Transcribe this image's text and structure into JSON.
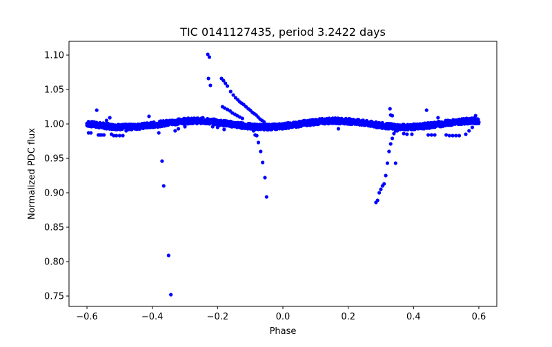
{
  "chart_data": {
    "type": "scatter",
    "title": "TIC 0141127435, period 3.2422 days",
    "xlabel": "Phase",
    "ylabel": "Normalized PDC flux",
    "xlim": [
      -0.655,
      0.655
    ],
    "ylim": [
      0.735,
      1.12
    ],
    "xticks": [
      -0.6,
      -0.4,
      -0.2,
      0.0,
      0.2,
      0.4,
      0.6
    ],
    "xtick_labels": [
      "−0.6",
      "−0.4",
      "−0.2",
      "0.0",
      "0.2",
      "0.4",
      "0.6"
    ],
    "yticks": [
      0.75,
      0.8,
      0.85,
      0.9,
      0.95,
      1.0,
      1.05,
      1.1
    ],
    "ytick_labels": [
      "0.75",
      "0.80",
      "0.85",
      "0.90",
      "0.95",
      "1.00",
      "1.05",
      "1.10"
    ],
    "grid": false,
    "legend": "none",
    "series": [
      {
        "color": "#0000ff",
        "marker": "circle",
        "baseline": {
          "x_range": [
            -0.6,
            0.6
          ],
          "model": "1 + 0.0045*sin(2*pi*(phase - 0.0)/0.43) approx; minima near -0.5 and 0.0, maxima near -0.22 and 0.22",
          "scatter": 0.004
        },
        "points": [
          {
            "x": -0.6,
            "y": 0.998
          },
          {
            "x": -0.595,
            "y": 0.987
          },
          {
            "x": -0.588,
            "y": 0.987
          },
          {
            "x": -0.57,
            "y": 1.02
          },
          {
            "x": -0.565,
            "y": 0.984
          },
          {
            "x": -0.56,
            "y": 0.984
          },
          {
            "x": -0.555,
            "y": 0.984
          },
          {
            "x": -0.548,
            "y": 0.984
          },
          {
            "x": -0.54,
            "y": 1.005
          },
          {
            "x": -0.53,
            "y": 1.009
          },
          {
            "x": -0.525,
            "y": 0.985
          },
          {
            "x": -0.518,
            "y": 0.983
          },
          {
            "x": -0.51,
            "y": 0.983
          },
          {
            "x": -0.5,
            "y": 0.983
          },
          {
            "x": -0.49,
            "y": 0.983
          },
          {
            "x": -0.48,
            "y": 0.99
          },
          {
            "x": -0.41,
            "y": 1.011
          },
          {
            "x": -0.38,
            "y": 0.987
          },
          {
            "x": -0.37,
            "y": 0.946
          },
          {
            "x": -0.365,
            "y": 0.91
          },
          {
            "x": -0.35,
            "y": 0.809
          },
          {
            "x": -0.343,
            "y": 0.752
          },
          {
            "x": -0.33,
            "y": 0.99
          },
          {
            "x": -0.32,
            "y": 0.993
          },
          {
            "x": -0.3,
            "y": 0.996
          },
          {
            "x": -0.26,
            "y": 1.002
          },
          {
            "x": -0.245,
            "y": 1.009
          },
          {
            "x": -0.23,
            "y": 1.101
          },
          {
            "x": -0.225,
            "y": 1.097
          },
          {
            "x": -0.228,
            "y": 1.066
          },
          {
            "x": -0.222,
            "y": 1.056
          },
          {
            "x": -0.215,
            "y": 0.996
          },
          {
            "x": -0.2,
            "y": 0.995
          },
          {
            "x": -0.188,
            "y": 1.066
          },
          {
            "x": -0.182,
            "y": 1.063
          },
          {
            "x": -0.176,
            "y": 1.059
          },
          {
            "x": -0.17,
            "y": 1.055
          },
          {
            "x": -0.16,
            "y": 1.047
          },
          {
            "x": -0.152,
            "y": 1.042
          },
          {
            "x": -0.145,
            "y": 1.038
          },
          {
            "x": -0.138,
            "y": 1.035
          },
          {
            "x": -0.132,
            "y": 1.032
          },
          {
            "x": -0.126,
            "y": 1.03
          },
          {
            "x": -0.12,
            "y": 1.028
          },
          {
            "x": -0.113,
            "y": 1.025
          },
          {
            "x": -0.106,
            "y": 1.022
          },
          {
            "x": -0.1,
            "y": 1.02
          },
          {
            "x": -0.094,
            "y": 1.017
          },
          {
            "x": -0.088,
            "y": 1.015
          },
          {
            "x": -0.082,
            "y": 1.013
          },
          {
            "x": -0.076,
            "y": 1.01
          },
          {
            "x": -0.07,
            "y": 1.007
          },
          {
            "x": -0.064,
            "y": 1.005
          },
          {
            "x": -0.058,
            "y": 1.003
          },
          {
            "x": -0.185,
            "y": 1.025
          },
          {
            "x": -0.178,
            "y": 1.023
          },
          {
            "x": -0.17,
            "y": 1.021
          },
          {
            "x": -0.162,
            "y": 1.019
          },
          {
            "x": -0.155,
            "y": 1.016
          },
          {
            "x": -0.147,
            "y": 1.014
          },
          {
            "x": -0.14,
            "y": 1.012
          },
          {
            "x": -0.132,
            "y": 1.01
          },
          {
            "x": -0.124,
            "y": 1.008
          },
          {
            "x": -0.18,
            "y": 0.992
          },
          {
            "x": -0.155,
            "y": 0.996
          },
          {
            "x": -0.14,
            "y": 0.995
          },
          {
            "x": -0.12,
            "y": 0.996
          },
          {
            "x": -0.1,
            "y": 0.993
          },
          {
            "x": -0.09,
            "y": 0.99
          },
          {
            "x": -0.085,
            "y": 0.984
          },
          {
            "x": -0.08,
            "y": 0.983
          },
          {
            "x": -0.075,
            "y": 0.973
          },
          {
            "x": -0.068,
            "y": 0.96
          },
          {
            "x": -0.062,
            "y": 0.944
          },
          {
            "x": -0.055,
            "y": 0.922
          },
          {
            "x": -0.05,
            "y": 0.894
          },
          {
            "x": -0.04,
            "y": 0.993
          },
          {
            "x": -0.03,
            "y": 0.995
          },
          {
            "x": 0.17,
            "y": 0.993
          },
          {
            "x": 0.285,
            "y": 0.886
          },
          {
            "x": 0.29,
            "y": 0.889
          },
          {
            "x": 0.295,
            "y": 0.9
          },
          {
            "x": 0.3,
            "y": 0.905
          },
          {
            "x": 0.305,
            "y": 0.91
          },
          {
            "x": 0.31,
            "y": 0.913
          },
          {
            "x": 0.315,
            "y": 0.925
          },
          {
            "x": 0.32,
            "y": 0.943
          },
          {
            "x": 0.325,
            "y": 0.96
          },
          {
            "x": 0.33,
            "y": 0.971
          },
          {
            "x": 0.335,
            "y": 0.979
          },
          {
            "x": 0.34,
            "y": 0.986
          },
          {
            "x": 0.345,
            "y": 0.99
          },
          {
            "x": 0.33,
            "y": 1.013
          },
          {
            "x": 0.328,
            "y": 1.022
          },
          {
            "x": 0.335,
            "y": 1.012
          },
          {
            "x": 0.345,
            "y": 0.943
          },
          {
            "x": 0.35,
            "y": 0.99
          },
          {
            "x": 0.37,
            "y": 0.986
          },
          {
            "x": 0.38,
            "y": 0.985
          },
          {
            "x": 0.395,
            "y": 0.985
          },
          {
            "x": 0.44,
            "y": 1.02
          },
          {
            "x": 0.445,
            "y": 0.984
          },
          {
            "x": 0.455,
            "y": 0.984
          },
          {
            "x": 0.465,
            "y": 0.984
          },
          {
            "x": 0.475,
            "y": 1.009
          },
          {
            "x": 0.5,
            "y": 0.984
          },
          {
            "x": 0.51,
            "y": 0.983
          },
          {
            "x": 0.52,
            "y": 0.983
          },
          {
            "x": 0.53,
            "y": 0.983
          },
          {
            "x": 0.54,
            "y": 0.983
          },
          {
            "x": 0.56,
            "y": 0.985
          },
          {
            "x": 0.57,
            "y": 0.99
          },
          {
            "x": 0.58,
            "y": 0.995
          },
          {
            "x": 0.59,
            "y": 1.012
          },
          {
            "x": 0.595,
            "y": 1.006
          }
        ]
      }
    ]
  }
}
